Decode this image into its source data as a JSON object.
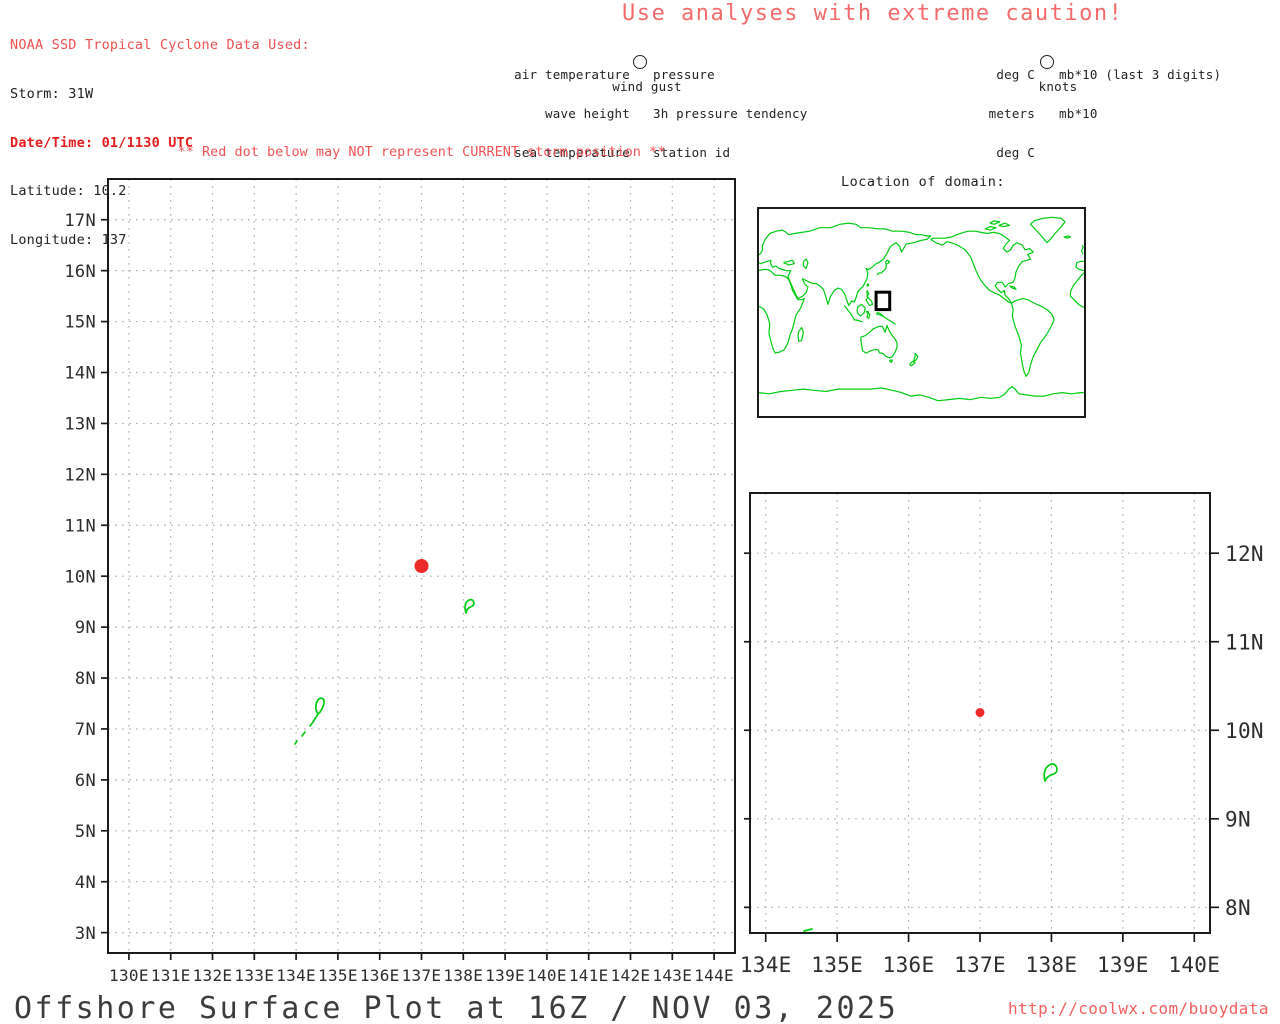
{
  "header": {
    "noaa_line": "NOAA SSD Tropical Cyclone Data Used:",
    "storm": "Storm: 31W",
    "datetime": "Date/Time: 01/1130 UTC",
    "latitude": "Latitude: 10.2",
    "longitude": "Longitude: 137"
  },
  "caution": "Use analyses with extreme caution!",
  "station_legend": {
    "left": [
      "air temperature",
      "wave height",
      "sea temperature"
    ],
    "right": [
      "pressure",
      "3h pressure tendency",
      "station id"
    ],
    "bottom": "wind gust"
  },
  "units_legend": {
    "left": [
      "deg C",
      "meters",
      "deg C"
    ],
    "right": [
      "mb*10 (last 3 digits)",
      "mb*10"
    ],
    "bottom": "knots"
  },
  "warning": "** Red dot below may NOT represent CURRENT storm position **",
  "footer": {
    "title": "Offshore Surface Plot at 16Z / NOV 03, 2025",
    "url": "http://coolwx.com/buoydata"
  },
  "colors": {
    "red_text": "#ef5050",
    "bold_red": "#e61c1c",
    "light_red": "#f56a6a",
    "dot_red": "#ee2b2b",
    "green": "#00cc11",
    "grid": "#b3b3b3",
    "border": "#1a1a1a",
    "title_gray": "#3c3c3c"
  },
  "chart_data": [
    {
      "id": "main-plot",
      "type": "scatter",
      "x_tick_labels": [
        "130E",
        "131E",
        "132E",
        "133E",
        "134E",
        "135E",
        "136E",
        "137E",
        "138E",
        "139E",
        "140E",
        "141E",
        "142E",
        "143E",
        "144E"
      ],
      "y_tick_labels": [
        "3N",
        "4N",
        "5N",
        "6N",
        "7N",
        "8N",
        "9N",
        "10N",
        "11N",
        "12N",
        "13N",
        "14N",
        "15N",
        "16N",
        "17N"
      ],
      "xlim": [
        129.5,
        144.5
      ],
      "ylim": [
        2.6,
        17.8
      ],
      "grid": "dotted",
      "points": [
        {
          "name": "storm-position-dot",
          "lon": 137,
          "lat": 10.2
        }
      ],
      "features": [
        "Yap island coastline",
        "Palau islands coastline"
      ]
    },
    {
      "id": "zoom-plot",
      "type": "scatter",
      "x_tick_labels": [
        "134E",
        "135E",
        "136E",
        "137E",
        "138E",
        "139E",
        "140E"
      ],
      "y_tick_labels": [
        "8N",
        "9N",
        "10N",
        "11N",
        "12N"
      ],
      "xlim": [
        133.78,
        140.22
      ],
      "ylim": [
        7.71,
        12.68
      ],
      "grid": "dotted",
      "points": [
        {
          "name": "storm-position-dot",
          "lon": 137,
          "lat": 10.2
        }
      ],
      "features": [
        "Yap island coastline",
        "Palau north tip at bottom edge"
      ]
    },
    {
      "id": "world-map-inset",
      "type": "map",
      "title": "Location of domain:",
      "domain_box": {
        "lon": [
          130,
          145
        ],
        "lat": [
          2.5,
          17.5
        ]
      }
    }
  ]
}
